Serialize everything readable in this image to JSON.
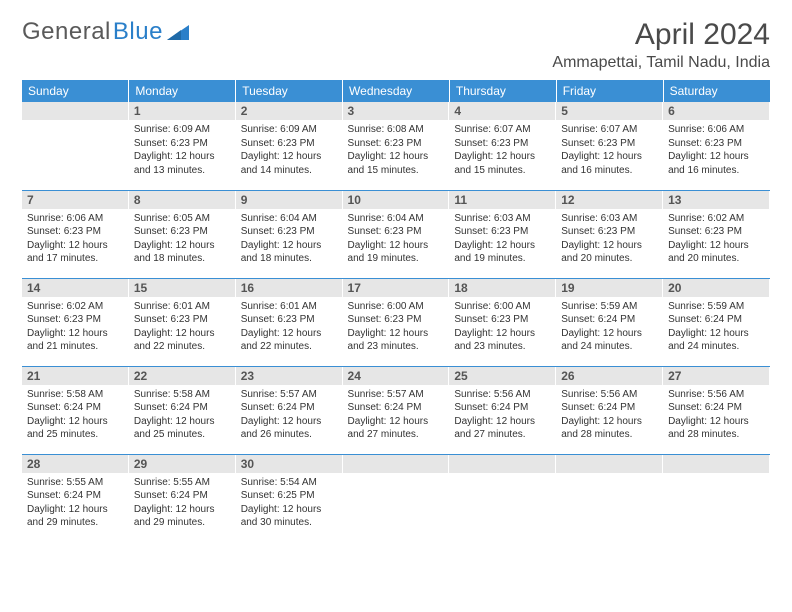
{
  "brand": {
    "name1": "General",
    "name2": "Blue"
  },
  "title": "April 2024",
  "location": "Ammapettai, Tamil Nadu, India",
  "colors": {
    "header_bg": "#3a8fd4",
    "header_text": "#ffffff",
    "daynum_bg": "#e6e6e6",
    "daynum_text": "#555555",
    "border": "#3a8fd4",
    "body_text": "#333333",
    "title_text": "#4a4a4a",
    "brand_gray": "#5a5a5a",
    "brand_blue": "#2a7fc9"
  },
  "typography": {
    "month_title_fontsize": 30,
    "location_fontsize": 16,
    "weekday_fontsize": 12,
    "daynum_fontsize": 12,
    "cell_fontsize": 10
  },
  "weekdays": [
    "Sunday",
    "Monday",
    "Tuesday",
    "Wednesday",
    "Thursday",
    "Friday",
    "Saturday"
  ],
  "weeks": [
    [
      null,
      {
        "d": "1",
        "sr": "6:09 AM",
        "ss": "6:23 PM",
        "dl": "12 hours and 13 minutes."
      },
      {
        "d": "2",
        "sr": "6:09 AM",
        "ss": "6:23 PM",
        "dl": "12 hours and 14 minutes."
      },
      {
        "d": "3",
        "sr": "6:08 AM",
        "ss": "6:23 PM",
        "dl": "12 hours and 15 minutes."
      },
      {
        "d": "4",
        "sr": "6:07 AM",
        "ss": "6:23 PM",
        "dl": "12 hours and 15 minutes."
      },
      {
        "d": "5",
        "sr": "6:07 AM",
        "ss": "6:23 PM",
        "dl": "12 hours and 16 minutes."
      },
      {
        "d": "6",
        "sr": "6:06 AM",
        "ss": "6:23 PM",
        "dl": "12 hours and 16 minutes."
      }
    ],
    [
      {
        "d": "7",
        "sr": "6:06 AM",
        "ss": "6:23 PM",
        "dl": "12 hours and 17 minutes."
      },
      {
        "d": "8",
        "sr": "6:05 AM",
        "ss": "6:23 PM",
        "dl": "12 hours and 18 minutes."
      },
      {
        "d": "9",
        "sr": "6:04 AM",
        "ss": "6:23 PM",
        "dl": "12 hours and 18 minutes."
      },
      {
        "d": "10",
        "sr": "6:04 AM",
        "ss": "6:23 PM",
        "dl": "12 hours and 19 minutes."
      },
      {
        "d": "11",
        "sr": "6:03 AM",
        "ss": "6:23 PM",
        "dl": "12 hours and 19 minutes."
      },
      {
        "d": "12",
        "sr": "6:03 AM",
        "ss": "6:23 PM",
        "dl": "12 hours and 20 minutes."
      },
      {
        "d": "13",
        "sr": "6:02 AM",
        "ss": "6:23 PM",
        "dl": "12 hours and 20 minutes."
      }
    ],
    [
      {
        "d": "14",
        "sr": "6:02 AM",
        "ss": "6:23 PM",
        "dl": "12 hours and 21 minutes."
      },
      {
        "d": "15",
        "sr": "6:01 AM",
        "ss": "6:23 PM",
        "dl": "12 hours and 22 minutes."
      },
      {
        "d": "16",
        "sr": "6:01 AM",
        "ss": "6:23 PM",
        "dl": "12 hours and 22 minutes."
      },
      {
        "d": "17",
        "sr": "6:00 AM",
        "ss": "6:23 PM",
        "dl": "12 hours and 23 minutes."
      },
      {
        "d": "18",
        "sr": "6:00 AM",
        "ss": "6:23 PM",
        "dl": "12 hours and 23 minutes."
      },
      {
        "d": "19",
        "sr": "5:59 AM",
        "ss": "6:24 PM",
        "dl": "12 hours and 24 minutes."
      },
      {
        "d": "20",
        "sr": "5:59 AM",
        "ss": "6:24 PM",
        "dl": "12 hours and 24 minutes."
      }
    ],
    [
      {
        "d": "21",
        "sr": "5:58 AM",
        "ss": "6:24 PM",
        "dl": "12 hours and 25 minutes."
      },
      {
        "d": "22",
        "sr": "5:58 AM",
        "ss": "6:24 PM",
        "dl": "12 hours and 25 minutes."
      },
      {
        "d": "23",
        "sr": "5:57 AM",
        "ss": "6:24 PM",
        "dl": "12 hours and 26 minutes."
      },
      {
        "d": "24",
        "sr": "5:57 AM",
        "ss": "6:24 PM",
        "dl": "12 hours and 27 minutes."
      },
      {
        "d": "25",
        "sr": "5:56 AM",
        "ss": "6:24 PM",
        "dl": "12 hours and 27 minutes."
      },
      {
        "d": "26",
        "sr": "5:56 AM",
        "ss": "6:24 PM",
        "dl": "12 hours and 28 minutes."
      },
      {
        "d": "27",
        "sr": "5:56 AM",
        "ss": "6:24 PM",
        "dl": "12 hours and 28 minutes."
      }
    ],
    [
      {
        "d": "28",
        "sr": "5:55 AM",
        "ss": "6:24 PM",
        "dl": "12 hours and 29 minutes."
      },
      {
        "d": "29",
        "sr": "5:55 AM",
        "ss": "6:24 PM",
        "dl": "12 hours and 29 minutes."
      },
      {
        "d": "30",
        "sr": "5:54 AM",
        "ss": "6:25 PM",
        "dl": "12 hours and 30 minutes."
      },
      null,
      null,
      null,
      null
    ]
  ],
  "labels": {
    "sunrise": "Sunrise:",
    "sunset": "Sunset:",
    "daylight": "Daylight:"
  }
}
